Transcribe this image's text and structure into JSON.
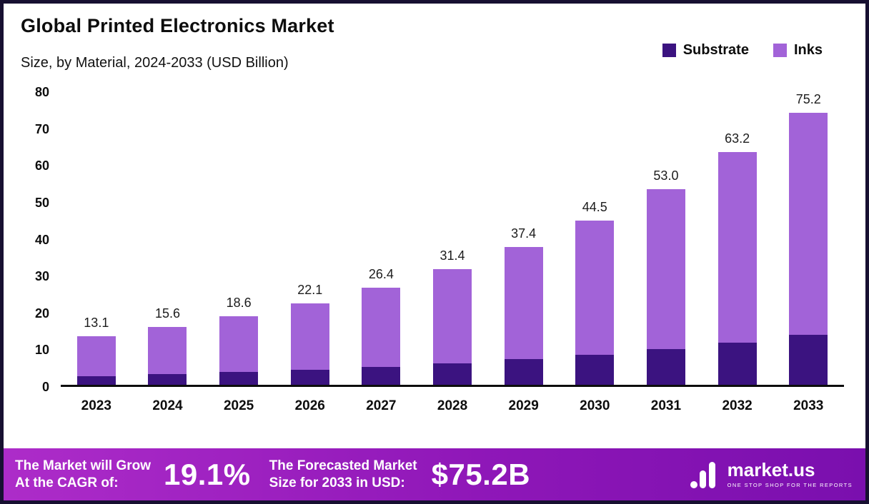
{
  "title": "Global Printed Electronics Market",
  "subtitle": "Size, by Material, 2024-2033 (USD Billion)",
  "legend": [
    {
      "label": "Substrate",
      "color": "#3b1380"
    },
    {
      "label": "Inks",
      "color": "#a263d8"
    }
  ],
  "chart_data": {
    "type": "bar",
    "stacked": true,
    "title": "Global Printed Electronics Market Size, by Material, 2024-2033 (USD Billion)",
    "categories": [
      "2023",
      "2024",
      "2025",
      "2026",
      "2027",
      "2028",
      "2029",
      "2030",
      "2031",
      "2032",
      "2033"
    ],
    "series": [
      {
        "name": "Substrate",
        "color": "#3b1380",
        "values": [
          2.3,
          2.9,
          3.4,
          4.0,
          4.8,
          5.8,
          6.9,
          8.1,
          9.6,
          11.4,
          13.9
        ]
      },
      {
        "name": "Inks",
        "color": "#a263d8",
        "values": [
          10.8,
          12.7,
          15.2,
          18.1,
          21.6,
          25.6,
          30.5,
          36.4,
          43.4,
          51.8,
          61.3
        ]
      }
    ],
    "totals": [
      13.1,
      15.6,
      18.6,
      22.1,
      26.4,
      31.4,
      37.4,
      44.5,
      53.0,
      63.2,
      75.2
    ],
    "ylim": [
      0,
      80
    ],
    "yticks": [
      0,
      10,
      20,
      30,
      40,
      50,
      60,
      70,
      80
    ],
    "grid": false,
    "legend_position": "top-right"
  },
  "footer": {
    "cagr_label": "The Market will Grow\nAt the CAGR of:",
    "cagr_value": "19.1%",
    "forecast_label": "The Forecasted Market\nSize for 2033 in USD:",
    "forecast_value": "$75.2B",
    "brand": "market.us",
    "brand_tagline": "ONE STOP SHOP FOR THE REPORTS",
    "gradient": [
      "#ad2cc9",
      "#8f17b8",
      "#7a0fae"
    ]
  }
}
